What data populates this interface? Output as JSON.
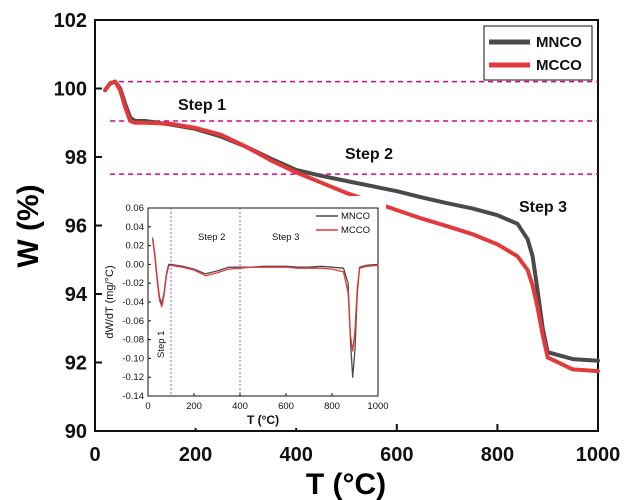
{
  "colors": {
    "MNCO": "#4a4a4a",
    "MCCO": "#e23a3a",
    "guide_main": "#d6008f",
    "guide_inset": "#8a2be2"
  },
  "chart_data": [
    {
      "type": "line",
      "xlabel": "T (°C)",
      "ylabel": "W (%)",
      "xlim": [
        0,
        1000
      ],
      "ylim": [
        90,
        102
      ],
      "xticks": [
        "0",
        "200",
        "400",
        "600",
        "800",
        "1000"
      ],
      "yticks": [
        "90",
        "92",
        "94",
        "96",
        "98",
        "100",
        "102"
      ],
      "legend_position": "top-right",
      "annotations": [
        "Step 1",
        "Step 2",
        "Step 3"
      ],
      "guide_lines_y": [
        100.2,
        99.05,
        97.5
      ],
      "series": [
        {
          "name": "MNCO",
          "x": [
            20,
            30,
            40,
            50,
            60,
            70,
            80,
            100,
            150,
            200,
            250,
            300,
            350,
            400,
            450,
            500,
            550,
            600,
            650,
            700,
            750,
            800,
            840,
            860,
            870,
            880,
            890,
            900,
            950,
            1000
          ],
          "y": [
            99.95,
            100.15,
            100.2,
            100.0,
            99.55,
            99.15,
            99.05,
            99.05,
            98.95,
            98.82,
            98.6,
            98.3,
            97.95,
            97.62,
            97.45,
            97.3,
            97.15,
            97.0,
            96.82,
            96.65,
            96.5,
            96.3,
            96.05,
            95.6,
            95.1,
            94.1,
            93.0,
            92.3,
            92.1,
            92.05
          ]
        },
        {
          "name": "MCCO",
          "x": [
            20,
            30,
            40,
            50,
            60,
            70,
            80,
            100,
            150,
            200,
            250,
            300,
            350,
            400,
            450,
            500,
            550,
            600,
            650,
            700,
            750,
            800,
            840,
            860,
            870,
            880,
            890,
            900,
            950,
            1000
          ],
          "y": [
            99.95,
            100.15,
            100.2,
            99.95,
            99.45,
            99.05,
            99.0,
            99.0,
            98.97,
            98.85,
            98.65,
            98.3,
            97.9,
            97.55,
            97.25,
            96.95,
            96.7,
            96.45,
            96.2,
            95.98,
            95.75,
            95.45,
            95.1,
            94.7,
            94.25,
            93.6,
            92.8,
            92.15,
            91.8,
            91.75
          ]
        }
      ]
    },
    {
      "type": "line",
      "xlabel": "T (°C)",
      "ylabel": "dW/dT (mg/°C)",
      "xlim": [
        0,
        1000
      ],
      "ylim": [
        -0.14,
        0.06
      ],
      "xticks": [
        "0",
        "200",
        "400",
        "600",
        "800",
        "1000"
      ],
      "yticks": [
        "0.06",
        "0.04",
        "0.02",
        "0.00",
        "-0.02",
        "-0.04",
        "-0.06",
        "-0.08",
        "-0.10",
        "-0.12",
        "-0.14"
      ],
      "legend_position": "top-right",
      "annotations": [
        "Step 1",
        "Step 2",
        "Step 3"
      ],
      "guide_lines_x": [
        100,
        400
      ],
      "series": [
        {
          "name": "MNCO",
          "x": [
            20,
            30,
            40,
            50,
            60,
            70,
            80,
            90,
            100,
            150,
            200,
            250,
            300,
            350,
            400,
            450,
            500,
            550,
            600,
            650,
            700,
            750,
            800,
            850,
            870,
            880,
            890,
            900,
            910,
            920,
            950,
            1000
          ],
          "y": [
            0.028,
            0.01,
            -0.015,
            -0.035,
            -0.042,
            -0.03,
            -0.01,
            0.0,
            0.0,
            -0.002,
            -0.005,
            -0.01,
            -0.007,
            -0.003,
            -0.003,
            -0.003,
            -0.002,
            -0.002,
            -0.002,
            -0.003,
            -0.003,
            -0.002,
            -0.003,
            -0.004,
            -0.02,
            -0.08,
            -0.12,
            -0.09,
            -0.03,
            -0.003,
            -0.001,
            0.0
          ]
        },
        {
          "name": "MCCO",
          "x": [
            20,
            30,
            40,
            50,
            60,
            70,
            80,
            90,
            100,
            150,
            200,
            250,
            300,
            350,
            400,
            450,
            500,
            550,
            600,
            650,
            700,
            750,
            800,
            850,
            870,
            880,
            890,
            900,
            910,
            920,
            950,
            1000
          ],
          "y": [
            0.027,
            0.008,
            -0.018,
            -0.038,
            -0.045,
            -0.032,
            -0.012,
            -0.002,
            -0.001,
            -0.003,
            -0.006,
            -0.012,
            -0.009,
            -0.005,
            -0.004,
            -0.003,
            -0.003,
            -0.003,
            -0.003,
            -0.004,
            -0.004,
            -0.004,
            -0.005,
            -0.008,
            -0.03,
            -0.075,
            -0.092,
            -0.07,
            -0.025,
            -0.004,
            -0.002,
            -0.001
          ]
        }
      ]
    }
  ]
}
